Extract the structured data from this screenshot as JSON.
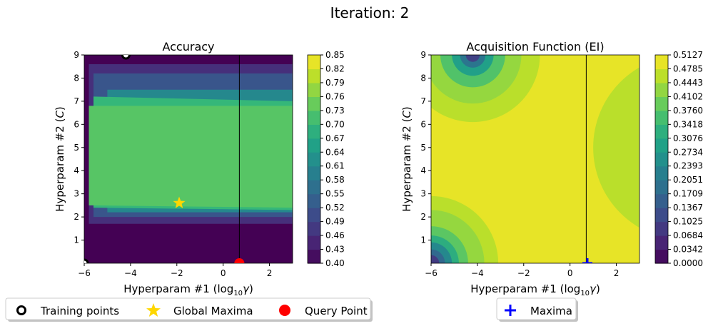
{
  "suptitle": "Iteration: 2",
  "colors": {
    "viridis": [
      "#440154",
      "#482878",
      "#3e4989",
      "#31688e",
      "#26828e",
      "#1f9e89",
      "#35b779",
      "#6ece58",
      "#b5de2b",
      "#fde725"
    ],
    "training_point": "#000000",
    "global_maxima": "#ffd700",
    "query_point": "#ff0000",
    "maxima": "#0000ff"
  },
  "chart_data": [
    {
      "type": "heatmap",
      "title": "Accuracy",
      "xlabel_main": "Hyperparam #1 (log",
      "xlabel_sub": "10",
      "xlabel_var": "γ",
      "xlabel_end": ")",
      "ylabel_main": "Hyperparam #2 (",
      "ylabel_var": "C",
      "ylabel_end": ")",
      "xlim": [
        -6,
        3
      ],
      "ylim": [
        0,
        9
      ],
      "x_ticks": [
        -6,
        -4,
        -2,
        0,
        2
      ],
      "x_tick_labels": [
        "−6",
        "−4",
        "−2",
        "0",
        "2"
      ],
      "y_ticks": [
        1,
        2,
        3,
        4,
        5,
        6,
        7,
        8,
        9
      ],
      "y_tick_labels": [
        "1",
        "2",
        "3",
        "4",
        "5",
        "6",
        "7",
        "8",
        "9"
      ],
      "colorbar": {
        "levels": [
          "0.40",
          "0.43",
          "0.46",
          "0.49",
          "0.52",
          "0.55",
          "0.58",
          "0.61",
          "0.64",
          "0.67",
          "0.70",
          "0.73",
          "0.76",
          "0.79",
          "0.82",
          "0.85"
        ]
      },
      "query_line_x": 0.7,
      "training_points": [
        {
          "x": -4.2,
          "y": 9.0
        },
        {
          "x": -6.0,
          "y": 0.0
        }
      ],
      "global_maxima": {
        "x": -1.9,
        "y": 2.6
      },
      "query_point": {
        "x": 0.7,
        "y": 0.0
      },
      "regions": [
        {
          "level": 0.4,
          "poly": [
            [
              -6,
              0
            ],
            [
              3,
              0
            ],
            [
              3,
              9
            ],
            [
              -6,
              9
            ]
          ]
        },
        {
          "level": 0.46,
          "poly": [
            [
              -5.8,
              1.7
            ],
            [
              3,
              1.7
            ],
            [
              3,
              8.6
            ],
            [
              -5.8,
              8.6
            ]
          ]
        },
        {
          "level": 0.52,
          "poly": [
            [
              -5.6,
              2.0
            ],
            [
              3,
              2.0
            ],
            [
              3,
              8.2
            ],
            [
              -5.6,
              8.2
            ]
          ]
        },
        {
          "level": 0.61,
          "poly": [
            [
              -5.0,
              2.2
            ],
            [
              3,
              2.2
            ],
            [
              3,
              7.5
            ],
            [
              -5.0,
              7.5
            ]
          ]
        },
        {
          "level": 0.7,
          "poly": [
            [
              -5.6,
              2.4
            ],
            [
              3,
              2.3
            ],
            [
              3,
              7.0
            ],
            [
              -5.6,
              7.2
            ]
          ]
        },
        {
          "level": 0.73,
          "poly": [
            [
              -5.8,
              2.5
            ],
            [
              3,
              2.4
            ],
            [
              3,
              6.8
            ],
            [
              -5.8,
              6.8
            ]
          ]
        }
      ]
    },
    {
      "type": "heatmap",
      "title": "Acquisition Function (EI)",
      "xlabel_main": "Hyperparam #1 (log",
      "xlabel_sub": "10",
      "xlabel_var": "γ",
      "xlabel_end": ")",
      "ylabel_main": "Hyperparam #2 (",
      "ylabel_var": "C",
      "ylabel_end": ")",
      "xlim": [
        -6,
        3
      ],
      "ylim": [
        0,
        9
      ],
      "x_ticks": [
        -6,
        -4,
        -2,
        0,
        2
      ],
      "x_tick_labels": [
        "−6",
        "−4",
        "−2",
        "0",
        "2"
      ],
      "y_ticks": [
        1,
        2,
        3,
        4,
        5,
        6,
        7,
        8,
        9
      ],
      "y_tick_labels": [
        "1",
        "2",
        "3",
        "4",
        "5",
        "6",
        "7",
        "8",
        "9"
      ],
      "colorbar": {
        "levels": [
          "0.0000",
          "0.0342",
          "0.0684",
          "0.1025",
          "0.1367",
          "0.1709",
          "0.2051",
          "0.2393",
          "0.2734",
          "0.3076",
          "0.3418",
          "0.3760",
          "0.4102",
          "0.4443",
          "0.4785",
          "0.5127"
        ]
      },
      "query_line_x": 0.7,
      "maxima": {
        "x": 0.75,
        "y": 0.0
      },
      "background_level": 0.495,
      "circles": [
        {
          "cx": -6.0,
          "cy": 0.0,
          "bands": [
            [
              2.9,
              0.46
            ],
            [
              2.3,
              0.43
            ],
            [
              1.6,
              0.38
            ],
            [
              1.2,
              0.32
            ],
            [
              0.9,
              0.24
            ],
            [
              0.6,
              0.17
            ],
            [
              0.35,
              0.09
            ]
          ]
        },
        {
          "cx": -4.2,
          "cy": 9.0,
          "bands": [
            [
              2.9,
              0.46
            ],
            [
              2.1,
              0.43
            ],
            [
              1.4,
              0.37
            ],
            [
              0.9,
              0.29
            ],
            [
              0.55,
              0.2
            ],
            [
              0.3,
              0.1
            ]
          ]
        },
        {
          "cx": 5.0,
          "cy": 5.0,
          "bands": [
            [
              4.0,
              0.46
            ]
          ]
        }
      ]
    }
  ],
  "legend_left": {
    "items": [
      {
        "label": "Training points",
        "marker": "ring"
      },
      {
        "label": "Global Maxima",
        "marker": "star"
      },
      {
        "label": "Query Point",
        "marker": "dot"
      }
    ]
  },
  "legend_right": {
    "items": [
      {
        "label": "Maxima",
        "marker": "plus"
      }
    ]
  }
}
